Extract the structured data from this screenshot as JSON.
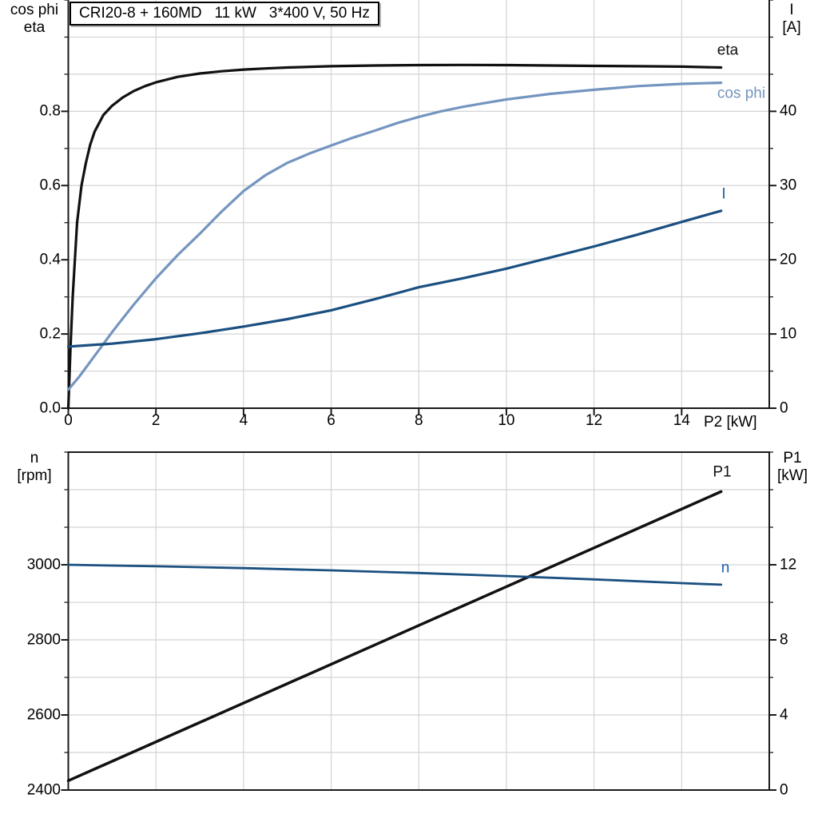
{
  "title": {
    "text": "CRI20-8 + 160MD   11 kW   3*400 V, 50 Hz"
  },
  "colors": {
    "black": "#111111",
    "light_blue": "#7495bf",
    "dark_blue": "#1a4f80",
    "dark_blue_label": "#1d5fa5",
    "grid": "#d4d4d4",
    "axis": "#1a1a1a"
  },
  "chart_data": [
    {
      "id": "electrical-panel",
      "type": "line",
      "title": "CRI20-8 + 160MD   11 kW   3*400 V, 50 Hz",
      "x_axis": {
        "label": "P2 [kW]",
        "min": 0,
        "max": 16,
        "grid_step": 2,
        "major_ticks": [
          0,
          2,
          4,
          6,
          8,
          10,
          12,
          14
        ],
        "show_tick_labels": true
      },
      "left_axis": {
        "header": [
          "cos phi",
          "eta"
        ],
        "min": 0,
        "max": 1.1,
        "grid_step": 0.1,
        "major_ticks": [
          0.0,
          0.2,
          0.4,
          0.6,
          0.8
        ],
        "decimals": 1
      },
      "right_axis": {
        "header": [
          "I",
          "[A]"
        ],
        "min": 0,
        "max": 55,
        "grid_step": 5,
        "major_ticks": [
          0,
          10,
          20,
          30,
          40
        ],
        "decimals": 0
      },
      "legend_position": "labels-at-line-ends",
      "series": [
        {
          "name": "eta",
          "axis": "left",
          "color": "black",
          "label_color": "black",
          "stroke": 3.2,
          "label": "eta",
          "label_xy": [
            911,
            63
          ],
          "points": [
            [
              0,
              0
            ],
            [
              0.05,
              0.16
            ],
            [
              0.1,
              0.3
            ],
            [
              0.2,
              0.5
            ],
            [
              0.3,
              0.6
            ],
            [
              0.4,
              0.66
            ],
            [
              0.5,
              0.71
            ],
            [
              0.6,
              0.745
            ],
            [
              0.8,
              0.79
            ],
            [
              1,
              0.815
            ],
            [
              1.25,
              0.838
            ],
            [
              1.5,
              0.855
            ],
            [
              1.75,
              0.868
            ],
            [
              2,
              0.878
            ],
            [
              2.5,
              0.893
            ],
            [
              3,
              0.902
            ],
            [
              3.5,
              0.908
            ],
            [
              4,
              0.9125
            ],
            [
              4.5,
              0.9155
            ],
            [
              5,
              0.918
            ],
            [
              6,
              0.9215
            ],
            [
              7,
              0.9235
            ],
            [
              8,
              0.9245
            ],
            [
              9,
              0.925
            ],
            [
              10,
              0.9245
            ],
            [
              11,
              0.9235
            ],
            [
              12,
              0.9225
            ],
            [
              13,
              0.9215
            ],
            [
              14,
              0.9205
            ],
            [
              14.9,
              0.918
            ]
          ]
        },
        {
          "name": "cos-phi",
          "axis": "left",
          "color": "light_blue",
          "label_color": "light_blue",
          "stroke": 3.2,
          "label": "cos phi",
          "label_xy": [
            928,
            117
          ],
          "points": [
            [
              0,
              0.05
            ],
            [
              0.25,
              0.085
            ],
            [
              0.5,
              0.125
            ],
            [
              0.75,
              0.165
            ],
            [
              1,
              0.205
            ],
            [
              1.25,
              0.243
            ],
            [
              1.5,
              0.28
            ],
            [
              2,
              0.35
            ],
            [
              2.5,
              0.413
            ],
            [
              3,
              0.47
            ],
            [
              3.5,
              0.53
            ],
            [
              4,
              0.585
            ],
            [
              4.5,
              0.628
            ],
            [
              5,
              0.661
            ],
            [
              5.5,
              0.686
            ],
            [
              6,
              0.708
            ],
            [
              6.5,
              0.729
            ],
            [
              7,
              0.748
            ],
            [
              7.5,
              0.768
            ],
            [
              8,
              0.785
            ],
            [
              8.5,
              0.8
            ],
            [
              9,
              0.812
            ],
            [
              9.5,
              0.822
            ],
            [
              10,
              0.832
            ],
            [
              11,
              0.847
            ],
            [
              12,
              0.858
            ],
            [
              13,
              0.868
            ],
            [
              14,
              0.874
            ],
            [
              14.9,
              0.877
            ]
          ]
        },
        {
          "name": "I",
          "axis": "right",
          "color": "dark_blue",
          "label_color": "dark_blue_label",
          "stroke": 3.2,
          "label": "I",
          "label_xy": [
            906,
            243
          ],
          "points": [
            [
              0,
              8.3
            ],
            [
              1,
              8.7
            ],
            [
              2,
              9.3
            ],
            [
              3,
              10.1
            ],
            [
              4,
              11.0
            ],
            [
              5,
              12.0
            ],
            [
              6,
              13.2
            ],
            [
              7,
              14.7
            ],
            [
              8,
              16.3
            ],
            [
              9,
              17.5
            ],
            [
              10,
              18.8
            ],
            [
              11,
              20.3
            ],
            [
              12,
              21.8
            ],
            [
              13,
              23.4
            ],
            [
              14,
              25.1
            ],
            [
              14.9,
              26.6
            ]
          ]
        }
      ]
    },
    {
      "id": "speed-power-panel",
      "type": "line",
      "title": "",
      "x_axis": {
        "label": "",
        "min": 0,
        "max": 16,
        "grid_step": 2,
        "major_ticks": [
          0,
          2,
          4,
          6,
          8,
          10,
          12,
          14
        ],
        "show_tick_labels": false
      },
      "left_axis": {
        "header": [
          "n",
          "[rpm]"
        ],
        "min": 2400,
        "max": 3300,
        "grid_step": 100,
        "major_ticks": [
          2400,
          2600,
          2800,
          3000
        ],
        "decimals": 0
      },
      "right_axis": {
        "header": [
          "P1",
          "[kW]"
        ],
        "min": 0,
        "max": 18,
        "grid_step": 2,
        "major_ticks": [
          0,
          4,
          8,
          12
        ],
        "decimals": 0
      },
      "legend_position": "labels-at-line-ends",
      "series": [
        {
          "name": "P1",
          "axis": "right",
          "color": "black",
          "label_color": "black",
          "stroke": 3.5,
          "label": "P1",
          "label_xy": [
            904,
            591
          ],
          "points": [
            [
              0,
              0.5
            ],
            [
              7.45,
              8.2
            ],
            [
              14.9,
              15.9
            ]
          ]
        },
        {
          "name": "n",
          "axis": "left",
          "color": "dark_blue",
          "label_color": "dark_blue_label",
          "stroke": 2.8,
          "label": "n",
          "label_xy": [
            908,
            711
          ],
          "points": [
            [
              0,
              3000
            ],
            [
              2,
              2996
            ],
            [
              4,
              2991
            ],
            [
              6,
              2985
            ],
            [
              8,
              2978
            ],
            [
              10,
              2970
            ],
            [
              12,
              2961
            ],
            [
              14,
              2951
            ],
            [
              14.9,
              2947
            ]
          ]
        }
      ]
    }
  ]
}
